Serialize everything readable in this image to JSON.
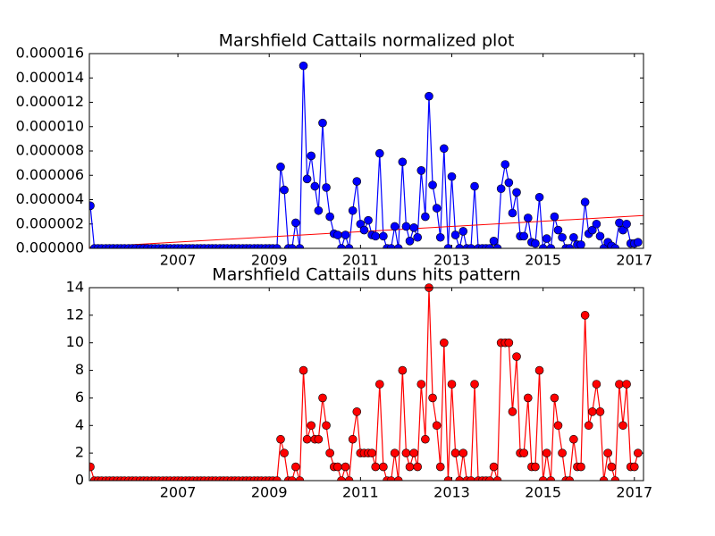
{
  "chart_data": [
    {
      "type": "line",
      "title": "Marshfield Cattails normalized plot",
      "color": "#0000ff",
      "marker_color": "#0000ff",
      "x": [
        2005.08,
        2005.17,
        2005.25,
        2005.33,
        2005.42,
        2005.5,
        2005.58,
        2005.67,
        2005.75,
        2005.83,
        2005.92,
        2006,
        2006.08,
        2006.17,
        2006.25,
        2006.33,
        2006.42,
        2006.5,
        2006.58,
        2006.67,
        2006.75,
        2006.83,
        2006.92,
        2007,
        2007.08,
        2007.17,
        2007.25,
        2007.33,
        2007.42,
        2007.5,
        2007.58,
        2007.67,
        2007.75,
        2007.83,
        2007.92,
        2008,
        2008.08,
        2008.17,
        2008.25,
        2008.33,
        2008.42,
        2008.5,
        2008.58,
        2008.67,
        2008.75,
        2008.83,
        2008.92,
        2009,
        2009.08,
        2009.17,
        2009.25,
        2009.33,
        2009.42,
        2009.5,
        2009.58,
        2009.67,
        2009.75,
        2009.83,
        2009.92,
        2010,
        2010.08,
        2010.17,
        2010.25,
        2010.33,
        2010.42,
        2010.5,
        2010.58,
        2010.67,
        2010.75,
        2010.83,
        2010.92,
        2011,
        2011.08,
        2011.17,
        2011.25,
        2011.33,
        2011.42,
        2011.5,
        2011.58,
        2011.67,
        2011.75,
        2011.83,
        2011.92,
        2012,
        2012.08,
        2012.17,
        2012.25,
        2012.33,
        2012.42,
        2012.5,
        2012.58,
        2012.67,
        2012.75,
        2012.83,
        2012.92,
        2013,
        2013.08,
        2013.17,
        2013.25,
        2013.33,
        2013.42,
        2013.5,
        2013.58,
        2013.67,
        2013.75,
        2013.83,
        2013.92,
        2014,
        2014.08,
        2014.17,
        2014.25,
        2014.33,
        2014.42,
        2014.5,
        2014.58,
        2014.67,
        2014.75,
        2014.83,
        2014.92,
        2015,
        2015.08,
        2015.17,
        2015.25,
        2015.33,
        2015.42,
        2015.5,
        2015.58,
        2015.67,
        2015.75,
        2015.83,
        2015.92,
        2016,
        2016.08,
        2016.17,
        2016.25,
        2016.33,
        2016.42,
        2016.5,
        2016.58,
        2016.67,
        2016.75,
        2016.83,
        2016.92,
        2017,
        2017.08
      ],
      "values": [
        3.5e-06,
        0,
        0,
        0,
        0,
        0,
        0,
        0,
        0,
        0,
        0,
        0,
        0,
        0,
        0,
        0,
        0,
        0,
        0,
        0,
        0,
        0,
        0,
        0,
        0,
        0,
        0,
        0,
        0,
        0,
        0,
        0,
        0,
        0,
        0,
        0,
        0,
        0,
        0,
        0,
        0,
        0,
        0,
        0,
        0,
        0,
        0,
        0,
        0,
        0,
        6.7e-06,
        4.8e-06,
        0,
        0,
        2.1e-06,
        0,
        1.5e-05,
        5.7e-06,
        7.6e-06,
        5.1e-06,
        3.1e-06,
        1.03e-05,
        5e-06,
        2.6e-06,
        1.2e-06,
        1.1e-06,
        0,
        1.1e-06,
        0,
        3.1e-06,
        5.5e-06,
        2e-06,
        1.5e-06,
        2.3e-06,
        1.1e-06,
        1e-06,
        7.8e-06,
        1e-06,
        0,
        0,
        1.8e-06,
        0,
        7.1e-06,
        1.8e-06,
        6e-07,
        1.7e-06,
        9e-07,
        6.4e-06,
        2.6e-06,
        1.25e-05,
        5.2e-06,
        3.3e-06,
        9e-07,
        8.2e-06,
        0,
        5.9e-06,
        1.1e-06,
        0,
        1.4e-06,
        0,
        0,
        5.1e-06,
        0,
        0,
        0,
        0,
        6e-07,
        0,
        4.9e-06,
        6.9e-06,
        5.4e-06,
        2.9e-06,
        4.6e-06,
        1e-06,
        1e-06,
        2.5e-06,
        5e-07,
        4e-07,
        4.2e-06,
        0,
        8e-07,
        0,
        2.6e-06,
        1.5e-06,
        9e-07,
        0,
        0,
        9e-07,
        3e-07,
        3e-07,
        3.8e-06,
        1.2e-06,
        1.5e-06,
        2e-06,
        1e-06,
        0,
        5e-07,
        2e-07,
        0,
        2.1e-06,
        1.5e-06,
        2e-06,
        4e-07,
        4e-07,
        5e-07
      ],
      "trend": {
        "color": "#ff0000",
        "x": [
          2005.06,
          2017.2
        ],
        "values": [
          1e-07,
          2.7e-06
        ]
      },
      "xlim": [
        2005.06,
        2017.2
      ],
      "xticks": [
        2007,
        2009,
        2011,
        2013,
        2015,
        2017
      ],
      "ylim": [
        0,
        1.6e-05
      ],
      "yticks": [
        {
          "value": 0,
          "label": "0.000000"
        },
        {
          "value": 2e-06,
          "label": "0.000002"
        },
        {
          "value": 4e-06,
          "label": "0.000004"
        },
        {
          "value": 6e-06,
          "label": "0.000006"
        },
        {
          "value": 8e-06,
          "label": "0.000008"
        },
        {
          "value": 1e-05,
          "label": "0.000010"
        },
        {
          "value": 1.2e-05,
          "label": "0.000012"
        },
        {
          "value": 1.4e-05,
          "label": "0.000014"
        },
        {
          "value": 1.6e-05,
          "label": "0.000016"
        }
      ],
      "grid": false
    },
    {
      "type": "line",
      "title": "Marshfield Cattails duns hits pattern",
      "color": "#ff0000",
      "marker_color": "#ff0000",
      "x": [
        2005.08,
        2005.17,
        2005.25,
        2005.33,
        2005.42,
        2005.5,
        2005.58,
        2005.67,
        2005.75,
        2005.83,
        2005.92,
        2006,
        2006.08,
        2006.17,
        2006.25,
        2006.33,
        2006.42,
        2006.5,
        2006.58,
        2006.67,
        2006.75,
        2006.83,
        2006.92,
        2007,
        2007.08,
        2007.17,
        2007.25,
        2007.33,
        2007.42,
        2007.5,
        2007.58,
        2007.67,
        2007.75,
        2007.83,
        2007.92,
        2008,
        2008.08,
        2008.17,
        2008.25,
        2008.33,
        2008.42,
        2008.5,
        2008.58,
        2008.67,
        2008.75,
        2008.83,
        2008.92,
        2009,
        2009.08,
        2009.17,
        2009.25,
        2009.33,
        2009.42,
        2009.5,
        2009.58,
        2009.67,
        2009.75,
        2009.83,
        2009.92,
        2010,
        2010.08,
        2010.17,
        2010.25,
        2010.33,
        2010.42,
        2010.5,
        2010.58,
        2010.67,
        2010.75,
        2010.83,
        2010.92,
        2011,
        2011.08,
        2011.17,
        2011.25,
        2011.33,
        2011.42,
        2011.5,
        2011.58,
        2011.67,
        2011.75,
        2011.83,
        2011.92,
        2012,
        2012.08,
        2012.17,
        2012.25,
        2012.33,
        2012.42,
        2012.5,
        2012.58,
        2012.67,
        2012.75,
        2012.83,
        2012.92,
        2013,
        2013.08,
        2013.17,
        2013.25,
        2013.33,
        2013.42,
        2013.5,
        2013.58,
        2013.67,
        2013.75,
        2013.83,
        2013.92,
        2014,
        2014.08,
        2014.17,
        2014.25,
        2014.33,
        2014.42,
        2014.5,
        2014.58,
        2014.67,
        2014.75,
        2014.83,
        2014.92,
        2015,
        2015.08,
        2015.17,
        2015.25,
        2015.33,
        2015.42,
        2015.5,
        2015.58,
        2015.67,
        2015.75,
        2015.83,
        2015.92,
        2016,
        2016.08,
        2016.17,
        2016.25,
        2016.33,
        2016.42,
        2016.5,
        2016.58,
        2016.67,
        2016.75,
        2016.83,
        2016.92,
        2017,
        2017.08
      ],
      "values": [
        1,
        0,
        0,
        0,
        0,
        0,
        0,
        0,
        0,
        0,
        0,
        0,
        0,
        0,
        0,
        0,
        0,
        0,
        0,
        0,
        0,
        0,
        0,
        0,
        0,
        0,
        0,
        0,
        0,
        0,
        0,
        0,
        0,
        0,
        0,
        0,
        0,
        0,
        0,
        0,
        0,
        0,
        0,
        0,
        0,
        0,
        0,
        0,
        0,
        0,
        3,
        2,
        0,
        0,
        1,
        0,
        8,
        3,
        4,
        3,
        3,
        6,
        4,
        2,
        1,
        1,
        0,
        1,
        0,
        3,
        5,
        2,
        2,
        2,
        2,
        1,
        7,
        1,
        0,
        0,
        2,
        0,
        8,
        2,
        1,
        2,
        1,
        7,
        3,
        14,
        6,
        4,
        1,
        10,
        0,
        7,
        2,
        0,
        2,
        0,
        0,
        7,
        0,
        0,
        0,
        0,
        1,
        0,
        10,
        10,
        10,
        5,
        9,
        2,
        2,
        6,
        1,
        1,
        8,
        0,
        2,
        0,
        6,
        4,
        2,
        0,
        0,
        3,
        1,
        1,
        12,
        4,
        5,
        7,
        5,
        0,
        2,
        1,
        0,
        7,
        4,
        7,
        1,
        1,
        2
      ],
      "xlim": [
        2005.06,
        2017.2
      ],
      "xticks": [
        2007,
        2009,
        2011,
        2013,
        2015,
        2017
      ],
      "ylim": [
        0,
        14
      ],
      "yticks": [
        0,
        2,
        4,
        6,
        8,
        10,
        12,
        14
      ],
      "grid": false
    }
  ]
}
